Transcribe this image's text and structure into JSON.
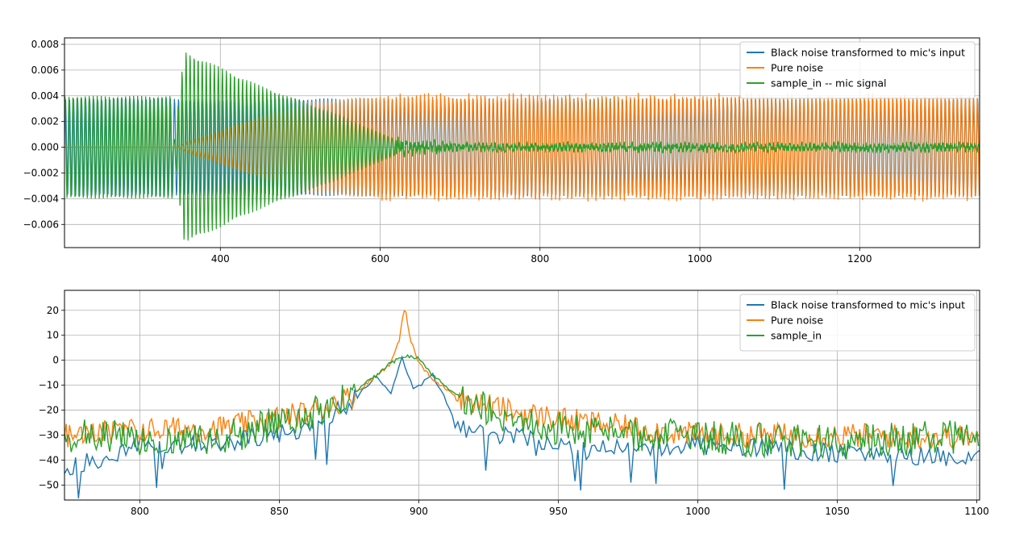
{
  "colors": {
    "blue": "#1f77b4",
    "orange": "#ff7f0e",
    "green": "#2ca02c",
    "grid": "#b0b0b0"
  },
  "chart_data": [
    {
      "type": "line",
      "title": "",
      "xlabel": "",
      "ylabel": "",
      "grid": true,
      "legend_position": "top-right",
      "xlim": [
        205,
        1350
      ],
      "ylim": [
        -0.0078,
        0.0085
      ],
      "xticks": [
        400,
        600,
        800,
        1000,
        1200
      ],
      "xtick_labels": [
        "400",
        "600",
        "800",
        "1000",
        "1200"
      ],
      "yticks": [
        -0.006,
        -0.004,
        -0.002,
        0.0,
        0.002,
        0.004,
        0.006,
        0.008
      ],
      "ytick_labels": [
        "−0.006",
        "−0.004",
        "−0.002",
        "0.000",
        "0.002",
        "0.004",
        "0.006",
        "0.008"
      ],
      "series": [
        {
          "name": "Black noise transformed to mic's input",
          "color": "#1f77b4",
          "description": "oscillation amplitude ~0.0038, period ~5.05 samples; near zero before x=210 region ends",
          "envelope": {
            "x": [
              205,
              345,
              360,
              500,
              600,
              650,
              1350
            ],
            "y": [
              0.0038,
              0.0038,
              0.0038,
              0.0038,
              0.0038,
              0.0038,
              0.0038
            ]
          }
        },
        {
          "name": "Pure noise",
          "color": "#ff7f0e",
          "envelope": {
            "x": [
              205,
              345,
              360,
              500,
              600,
              650,
              1350
            ],
            "y": [
              0.0,
              0.0,
              0.0004,
              0.0035,
              0.004,
              0.004,
              0.004
            ]
          }
        },
        {
          "name": "sample_in -- mic signal",
          "color": "#2ca02c",
          "envelope": {
            "x": [
              205,
              340,
              341,
              355,
              450,
              550,
              620,
              700,
              1350
            ],
            "y": [
              0.004,
              0.004,
              0.0,
              0.0075,
              0.0048,
              0.0025,
              0.0006,
              0.0003,
              0.0003
            ]
          }
        }
      ]
    },
    {
      "type": "line",
      "title": "",
      "xlabel": "",
      "ylabel": "",
      "grid": true,
      "legend_position": "top-right",
      "xlim": [
        773,
        1101
      ],
      "ylim": [
        -56,
        28
      ],
      "xticks": [
        800,
        850,
        900,
        950,
        1000,
        1050,
        1100
      ],
      "xtick_labels": [
        "800",
        "850",
        "900",
        "950",
        "1000",
        "1050",
        "1100"
      ],
      "yticks": [
        -50,
        -40,
        -30,
        -20,
        -10,
        0,
        10,
        20
      ],
      "ytick_labels": [
        "−50",
        "−40",
        "−30",
        "−20",
        "−10",
        "0",
        "10",
        "20"
      ],
      "series": [
        {
          "name": "Black noise transformed to mic's input",
          "color": "#1f77b4",
          "x": [
            773,
            800,
            830,
            860,
            875,
            885,
            890,
            894,
            898,
            905,
            915,
            935,
            960,
            1000,
            1050,
            1101
          ],
          "y": [
            -44,
            -34,
            -33,
            -27,
            -18,
            -6,
            -14,
            1,
            -12,
            -6,
            -28,
            -30,
            -36,
            -34,
            -37,
            -39
          ]
        },
        {
          "name": "Pure noise",
          "color": "#ff7f0e",
          "x": [
            773,
            800,
            830,
            860,
            875,
            885,
            890,
            893,
            895,
            897,
            900,
            905,
            915,
            935,
            960,
            1000,
            1050,
            1101
          ],
          "y": [
            -30,
            -28,
            -27,
            -21,
            -15,
            -6,
            -1,
            8,
            22,
            8,
            -1,
            -8,
            -15,
            -21,
            -25,
            -30,
            -30,
            -31
          ]
        },
        {
          "name": "sample_in",
          "color": "#2ca02c",
          "x": [
            773,
            800,
            830,
            860,
            875,
            885,
            890,
            895,
            900,
            905,
            915,
            935,
            960,
            1000,
            1050,
            1101
          ],
          "y": [
            -30,
            -31,
            -31,
            -22,
            -14,
            -6,
            -1,
            2,
            1,
            -6,
            -16,
            -24,
            -29,
            -31,
            -33,
            -30
          ]
        }
      ]
    }
  ]
}
